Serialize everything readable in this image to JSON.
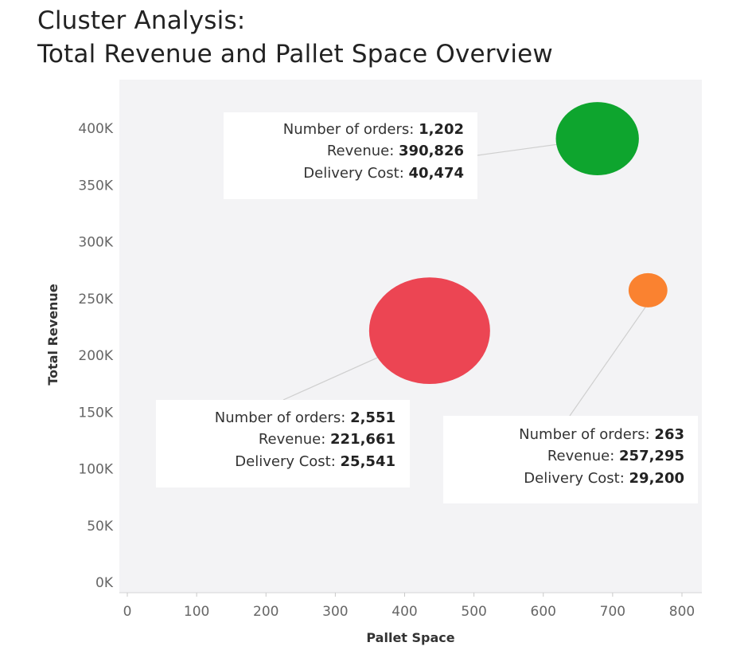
{
  "title": {
    "line1": "Cluster Analysis:",
    "line2": "Total Revenue and Pallet Space Overview"
  },
  "chart_data": {
    "type": "scatter",
    "xlabel": "Pallet Space",
    "ylabel": "Total Revenue",
    "xlim": [
      0,
      800
    ],
    "ylim": [
      0,
      400000
    ],
    "x_ticks": [
      "0",
      "100",
      "200",
      "300",
      "400",
      "500",
      "600",
      "700",
      "800"
    ],
    "y_ticks": [
      "0K",
      "50K",
      "100K",
      "150K",
      "200K",
      "250K",
      "300K",
      "350K",
      "400K"
    ],
    "grid": false,
    "background": "#f3f3f5",
    "points": [
      {
        "x": 678,
        "y": 390826,
        "size": 1202,
        "color": "#0ea52e",
        "tooltip": [
          {
            "label": "Number of orders:",
            "value": "1,202"
          },
          {
            "label": "Revenue:",
            "value": "390,826"
          },
          {
            "label": "Delivery Cost:",
            "value": "40,474"
          }
        ]
      },
      {
        "x": 436,
        "y": 221661,
        "size": 2551,
        "color": "#ec4553",
        "tooltip": [
          {
            "label": "Number of orders:",
            "value": "2,551"
          },
          {
            "label": "Revenue:",
            "value": "221,661"
          },
          {
            "label": "Delivery Cost:",
            "value": "25,541"
          }
        ]
      },
      {
        "x": 751,
        "y": 257295,
        "size": 263,
        "color": "#fa8230",
        "tooltip": [
          {
            "label": "Number of orders:",
            "value": "263"
          },
          {
            "label": "Revenue:",
            "value": "257,295"
          },
          {
            "label": "Delivery Cost:",
            "value": "29,200"
          }
        ]
      }
    ]
  }
}
